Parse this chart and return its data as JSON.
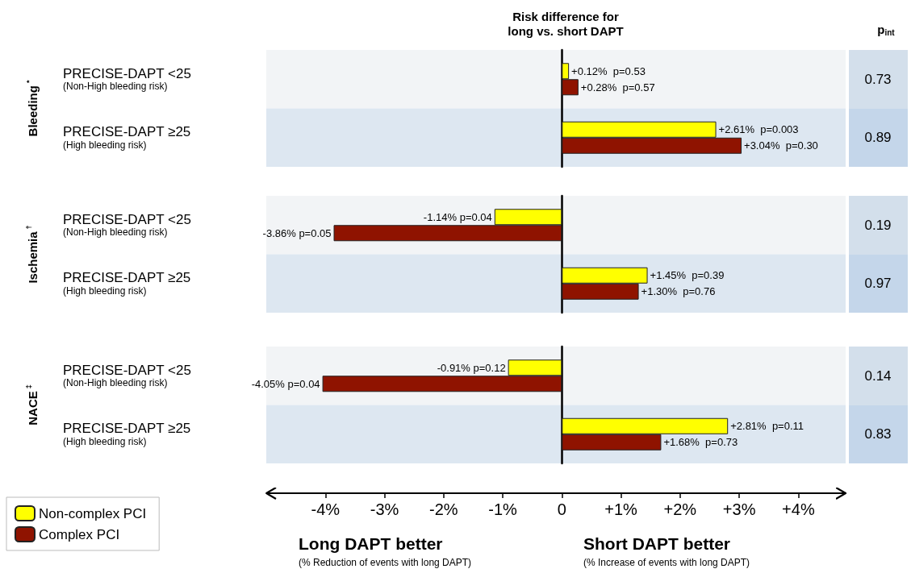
{
  "chart_data": [
    {
      "type": "bar",
      "orientation": "horizontal",
      "title": "Risk difference for\nlong vs. short DAPT",
      "ylabel": "Bleeding$^{*}$",
      "categories": [
        "PRECISE-DAPT <25\n(Non-High bleeding risk)",
        "PRECISE-DAPT ≥25\n(High bleeding risk)"
      ],
      "series": [
        {
          "color": "#ffff00",
          "values": [
            0.12,
            2.61
          ],
          "value_labels": [
            "+0.12%  p=0.53",
            "+2.61%  p=0.003"
          ]
        },
        {
          "color": "#8f1300",
          "values": [
            0.28,
            3.04
          ],
          "value_labels": [
            "+0.28%  p=0.57",
            "+3.04%  p=0.30"
          ]
        }
      ],
      "xlim": [
        -5,
        4.8
      ],
      "tick_labels": "y",
      "legend": false,
      "bands": [
        {
          "axis": "y",
          "from": "PRECISE-DAPT <25\n(Non-High bleeding risk)",
          "to": "PRECISE-DAPT <25\n(Non-High bleeding risk)",
          "color": "#f2f4f6"
        },
        {
          "axis": "y",
          "from": "PRECISE-DAPT ≥25\n(High bleeding risk)",
          "to": "PRECISE-DAPT ≥25\n(High bleeding risk)",
          "color": "#dde7f1"
        }
      ],
      "annotations": [
        "p$_{int}$",
        "0.73",
        "0.89"
      ]
    },
    {
      "type": "bar",
      "orientation": "horizontal",
      "ylabel": "Ischemia$^{†}$",
      "categories": [
        "PRECISE-DAPT <25\n(Non-High bleeding risk)",
        "PRECISE-DAPT ≥25\n(High bleeding risk)"
      ],
      "series": [
        {
          "color": "#ffff00",
          "values": [
            -1.14,
            1.45
          ],
          "value_labels": [
            "-1.14% p=0.04",
            "+1.45%  p=0.39"
          ]
        },
        {
          "color": "#8f1300",
          "values": [
            -3.86,
            1.3
          ],
          "value_labels": [
            "-3.86% p=0.05",
            "+1.30%  p=0.76"
          ]
        }
      ],
      "xlim": [
        -5,
        4.8
      ],
      "tick_labels": "y",
      "legend": false,
      "bands": [
        {
          "axis": "y",
          "from": "PRECISE-DAPT <25\n(Non-High bleeding risk)",
          "to": "PRECISE-DAPT <25\n(Non-High bleeding risk)",
          "color": "#f2f4f6"
        },
        {
          "axis": "y",
          "from": "PRECISE-DAPT ≥25\n(High bleeding risk)",
          "to": "PRECISE-DAPT ≥25\n(High bleeding risk)",
          "color": "#dde7f1"
        }
      ],
      "annotations": [
        "0.19",
        "0.97"
      ]
    },
    {
      "type": "bar",
      "orientation": "horizontal",
      "ylabel": "NACE$^{‡}$",
      "categories": [
        "PRECISE-DAPT <25\n(Non-High bleeding risk)",
        "PRECISE-DAPT ≥25\n(High bleeding risk)"
      ],
      "series": [
        {
          "name": "Non-complex PCI",
          "color": "#ffff00",
          "values": [
            -0.91,
            2.81
          ],
          "value_labels": [
            "-0.91% p=0.12",
            "+2.81%  p=0.11"
          ]
        },
        {
          "name": "Complex PCI",
          "color": "#8f1300",
          "values": [
            -4.05,
            1.68
          ],
          "value_labels": [
            "-4.05% p=0.04",
            "+1.68%  p=0.73"
          ]
        }
      ],
      "xlim": [
        -5,
        4.8
      ],
      "xticks": [
        {
          "value": -4,
          "label": "-4%"
        },
        {
          "value": -3,
          "label": "-3%"
        },
        {
          "value": -2,
          "label": "-2%"
        },
        {
          "value": -1,
          "label": "-1%"
        },
        0,
        {
          "value": 1,
          "label": "+1%"
        },
        {
          "value": 2,
          "label": "+2%"
        },
        {
          "value": 3,
          "label": "+3%"
        },
        {
          "value": 4,
          "label": "+4%"
        }
      ],
      "legend": "bottom left",
      "bands": [
        {
          "axis": "y",
          "from": "PRECISE-DAPT <25\n(Non-High bleeding risk)",
          "to": "PRECISE-DAPT <25\n(Non-High bleeding risk)",
          "color": "#f2f4f6"
        },
        {
          "axis": "y",
          "from": "PRECISE-DAPT ≥25\n(High bleeding risk)",
          "to": "PRECISE-DAPT ≥25\n(High bleeding risk)",
          "color": "#dde7f1"
        }
      ],
      "annotations": [
        "0.14",
        "0.83",
        "Long DAPT better",
        "(% Reduction of events with long DAPT)",
        "Short DAPT better",
        "(% Increase of events with long DAPT)"
      ]
    }
  ]
}
